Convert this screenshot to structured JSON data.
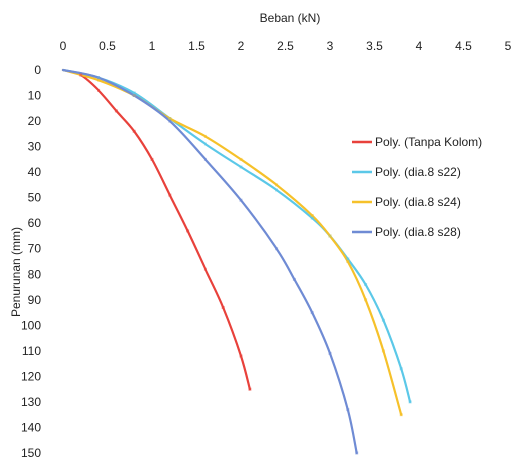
{
  "chart_data": {
    "type": "line",
    "xlabel": "Beban (kN)",
    "ylabel": "Penurunan (mm)",
    "xlim": [
      0,
      5
    ],
    "ylim": [
      0,
      150
    ],
    "x_ticks": [
      "0",
      "0.5",
      "1",
      "1.5",
      "2",
      "2.5",
      "3",
      "3.5",
      "4",
      "4.5",
      "5"
    ],
    "y_ticks": [
      "0",
      "10",
      "20",
      "30",
      "40",
      "50",
      "60",
      "70",
      "80",
      "90",
      "100",
      "110",
      "120",
      "130",
      "140",
      "150"
    ],
    "y_inverted": true,
    "x_axis_position": "top",
    "grid": false,
    "legend_position": "right",
    "series": [
      {
        "name": "Poly. (Tanpa Kolom)",
        "color": "#e8413b",
        "x": [
          0,
          0.2,
          0.4,
          0.6,
          0.8,
          1.0,
          1.2,
          1.4,
          1.6,
          1.8,
          2.0,
          2.1
        ],
        "y": [
          0,
          2,
          8,
          16,
          24,
          35,
          49,
          63,
          78,
          93,
          112,
          125
        ]
      },
      {
        "name": "Poly. (dia.8 s22)",
        "color": "#5bc8e8",
        "x": [
          0,
          0.4,
          0.8,
          1.2,
          1.6,
          2.0,
          2.4,
          2.8,
          3.0,
          3.2,
          3.4,
          3.6,
          3.8,
          3.9
        ],
        "y": [
          0,
          3,
          9,
          19,
          29,
          38,
          47,
          58,
          65,
          74,
          84,
          98,
          117,
          130
        ]
      },
      {
        "name": "Poly. (dia.8 s24)",
        "color": "#f6c12a",
        "x": [
          0,
          0.4,
          0.8,
          1.2,
          1.6,
          2.0,
          2.4,
          2.8,
          3.0,
          3.2,
          3.4,
          3.6,
          3.8
        ],
        "y": [
          0,
          4,
          10,
          19,
          26,
          35,
          45,
          57,
          65,
          75,
          90,
          110,
          135
        ]
      },
      {
        "name": "Poly. (dia.8 s28)",
        "color": "#6f8bd4",
        "x": [
          0,
          0.4,
          0.8,
          1.2,
          1.6,
          2.0,
          2.4,
          2.6,
          2.8,
          3.0,
          3.2,
          3.3
        ],
        "y": [
          0,
          3,
          10,
          20,
          35,
          51,
          70,
          82,
          95,
          111,
          133,
          150
        ]
      }
    ]
  }
}
